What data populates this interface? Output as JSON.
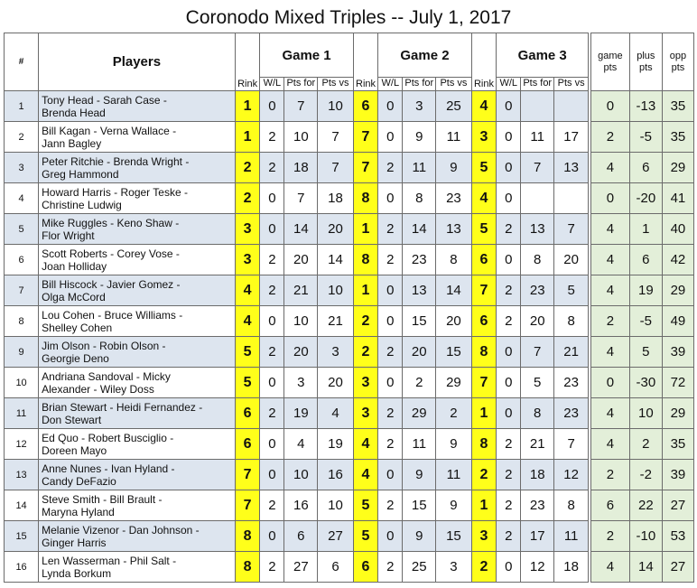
{
  "title": "Coronodo Mixed Triples -- July 1, 2017",
  "header": {
    "hash": "#",
    "players": "Players",
    "rink": "Rink",
    "games": [
      "Game 1",
      "Game 2",
      "Game 3"
    ],
    "wl": "W/L",
    "pts_for": "Pts for",
    "pts_vs": "Pts vs",
    "game_pts": "game pts",
    "plus_pts": "plus pts",
    "opp_pts": "opp pts"
  },
  "rows": [
    {
      "num": "1",
      "players": [
        "Tony Head - Sarah Case -",
        "Brenda Head"
      ],
      "g1": {
        "rink": "1",
        "wl": "0",
        "pf": "7",
        "pv": "10"
      },
      "g2": {
        "rink": "6",
        "wl": "0",
        "pf": "3",
        "pv": "25"
      },
      "g3": {
        "rink": "4",
        "wl": "0",
        "pf": "",
        "pv": ""
      },
      "game_pts": "0",
      "plus_pts": "-13",
      "opp_pts": "35"
    },
    {
      "num": "2",
      "players": [
        "Bill Kagan - Verna Wallace -",
        "Jann Bagley"
      ],
      "g1": {
        "rink": "1",
        "wl": "2",
        "pf": "10",
        "pv": "7"
      },
      "g2": {
        "rink": "7",
        "wl": "0",
        "pf": "9",
        "pv": "11"
      },
      "g3": {
        "rink": "3",
        "wl": "0",
        "pf": "11",
        "pv": "17"
      },
      "game_pts": "2",
      "plus_pts": "-5",
      "opp_pts": "35"
    },
    {
      "num": "3",
      "players": [
        "Peter Ritchie - Brenda Wright -",
        "Greg Hammond"
      ],
      "g1": {
        "rink": "2",
        "wl": "2",
        "pf": "18",
        "pv": "7"
      },
      "g2": {
        "rink": "7",
        "wl": "2",
        "pf": "11",
        "pv": "9"
      },
      "g3": {
        "rink": "5",
        "wl": "0",
        "pf": "7",
        "pv": "13"
      },
      "game_pts": "4",
      "plus_pts": "6",
      "opp_pts": "29"
    },
    {
      "num": "4",
      "players": [
        "Howard Harris - Roger Teske -",
        "Christine Ludwig"
      ],
      "g1": {
        "rink": "2",
        "wl": "0",
        "pf": "7",
        "pv": "18"
      },
      "g2": {
        "rink": "8",
        "wl": "0",
        "pf": "8",
        "pv": "23"
      },
      "g3": {
        "rink": "4",
        "wl": "0",
        "pf": "",
        "pv": ""
      },
      "game_pts": "0",
      "plus_pts": "-20",
      "opp_pts": "41"
    },
    {
      "num": "5",
      "players": [
        "Mike Ruggles - Keno Shaw -",
        "Flor Wright"
      ],
      "g1": {
        "rink": "3",
        "wl": "0",
        "pf": "14",
        "pv": "20"
      },
      "g2": {
        "rink": "1",
        "wl": "2",
        "pf": "14",
        "pv": "13"
      },
      "g3": {
        "rink": "5",
        "wl": "2",
        "pf": "13",
        "pv": "7"
      },
      "game_pts": "4",
      "plus_pts": "1",
      "opp_pts": "40"
    },
    {
      "num": "6",
      "players": [
        "Scott Roberts - Corey Vose -",
        "Joan Holliday"
      ],
      "g1": {
        "rink": "3",
        "wl": "2",
        "pf": "20",
        "pv": "14"
      },
      "g2": {
        "rink": "8",
        "wl": "2",
        "pf": "23",
        "pv": "8"
      },
      "g3": {
        "rink": "6",
        "wl": "0",
        "pf": "8",
        "pv": "20"
      },
      "game_pts": "4",
      "plus_pts": "6",
      "opp_pts": "42"
    },
    {
      "num": "7",
      "players": [
        "Bill Hiscock - Javier Gomez -",
        "Olga McCord"
      ],
      "g1": {
        "rink": "4",
        "wl": "2",
        "pf": "21",
        "pv": "10"
      },
      "g2": {
        "rink": "1",
        "wl": "0",
        "pf": "13",
        "pv": "14"
      },
      "g3": {
        "rink": "7",
        "wl": "2",
        "pf": "23",
        "pv": "5"
      },
      "game_pts": "4",
      "plus_pts": "19",
      "opp_pts": "29"
    },
    {
      "num": "8",
      "players": [
        "Lou Cohen - Bruce Williams -",
        "Shelley Cohen"
      ],
      "g1": {
        "rink": "4",
        "wl": "0",
        "pf": "10",
        "pv": "21"
      },
      "g2": {
        "rink": "2",
        "wl": "0",
        "pf": "15",
        "pv": "20"
      },
      "g3": {
        "rink": "6",
        "wl": "2",
        "pf": "20",
        "pv": "8"
      },
      "game_pts": "2",
      "plus_pts": "-5",
      "opp_pts": "49"
    },
    {
      "num": "9",
      "players": [
        "Jim Olson - Robin Olson -",
        "Georgie Deno"
      ],
      "g1": {
        "rink": "5",
        "wl": "2",
        "pf": "20",
        "pv": "3"
      },
      "g2": {
        "rink": "2",
        "wl": "2",
        "pf": "20",
        "pv": "15"
      },
      "g3": {
        "rink": "8",
        "wl": "0",
        "pf": "7",
        "pv": "21"
      },
      "game_pts": "4",
      "plus_pts": "5",
      "opp_pts": "39"
    },
    {
      "num": "10",
      "players": [
        "Andriana Sandoval - Micky",
        "Alexander - Wiley Doss"
      ],
      "g1": {
        "rink": "5",
        "wl": "0",
        "pf": "3",
        "pv": "20"
      },
      "g2": {
        "rink": "3",
        "wl": "0",
        "pf": "2",
        "pv": "29"
      },
      "g3": {
        "rink": "7",
        "wl": "0",
        "pf": "5",
        "pv": "23"
      },
      "game_pts": "0",
      "plus_pts": "-30",
      "opp_pts": "72"
    },
    {
      "num": "11",
      "players": [
        "Brian Stewart - Heidi Fernandez -",
        "Don Stewart"
      ],
      "g1": {
        "rink": "6",
        "wl": "2",
        "pf": "19",
        "pv": "4"
      },
      "g2": {
        "rink": "3",
        "wl": "2",
        "pf": "29",
        "pv": "2"
      },
      "g3": {
        "rink": "1",
        "wl": "0",
        "pf": "8",
        "pv": "23"
      },
      "game_pts": "4",
      "plus_pts": "10",
      "opp_pts": "29"
    },
    {
      "num": "12",
      "players": [
        "Ed Quo - Robert Busciglio -",
        "Doreen Mayo"
      ],
      "g1": {
        "rink": "6",
        "wl": "0",
        "pf": "4",
        "pv": "19"
      },
      "g2": {
        "rink": "4",
        "wl": "2",
        "pf": "11",
        "pv": "9"
      },
      "g3": {
        "rink": "8",
        "wl": "2",
        "pf": "21",
        "pv": "7"
      },
      "game_pts": "4",
      "plus_pts": "2",
      "opp_pts": "35"
    },
    {
      "num": "13",
      "players": [
        "Anne Nunes - Ivan Hyland -",
        "Candy DeFazio"
      ],
      "g1": {
        "rink": "7",
        "wl": "0",
        "pf": "10",
        "pv": "16"
      },
      "g2": {
        "rink": "4",
        "wl": "0",
        "pf": "9",
        "pv": "11"
      },
      "g3": {
        "rink": "2",
        "wl": "2",
        "pf": "18",
        "pv": "12"
      },
      "game_pts": "2",
      "plus_pts": "-2",
      "opp_pts": "39"
    },
    {
      "num": "14",
      "players": [
        "Steve Smith - Bill Brault -",
        "Maryna Hyland"
      ],
      "g1": {
        "rink": "7",
        "wl": "2",
        "pf": "16",
        "pv": "10"
      },
      "g2": {
        "rink": "5",
        "wl": "2",
        "pf": "15",
        "pv": "9"
      },
      "g3": {
        "rink": "1",
        "wl": "2",
        "pf": "23",
        "pv": "8"
      },
      "game_pts": "6",
      "plus_pts": "22",
      "opp_pts": "27"
    },
    {
      "num": "15",
      "players": [
        "Melanie Vizenor - Dan Johnson -",
        "Ginger Harris"
      ],
      "g1": {
        "rink": "8",
        "wl": "0",
        "pf": "6",
        "pv": "27"
      },
      "g2": {
        "rink": "5",
        "wl": "0",
        "pf": "9",
        "pv": "15"
      },
      "g3": {
        "rink": "3",
        "wl": "2",
        "pf": "17",
        "pv": "11"
      },
      "game_pts": "2",
      "plus_pts": "-10",
      "opp_pts": "53"
    },
    {
      "num": "16",
      "players": [
        "Len Wasserman - Phil Salt -",
        "Lynda Borkum"
      ],
      "g1": {
        "rink": "8",
        "wl": "2",
        "pf": "27",
        "pv": "6"
      },
      "g2": {
        "rink": "6",
        "wl": "2",
        "pf": "25",
        "pv": "3"
      },
      "g3": {
        "rink": "2",
        "wl": "0",
        "pf": "12",
        "pv": "18"
      },
      "game_pts": "4",
      "plus_pts": "14",
      "opp_pts": "27"
    }
  ]
}
